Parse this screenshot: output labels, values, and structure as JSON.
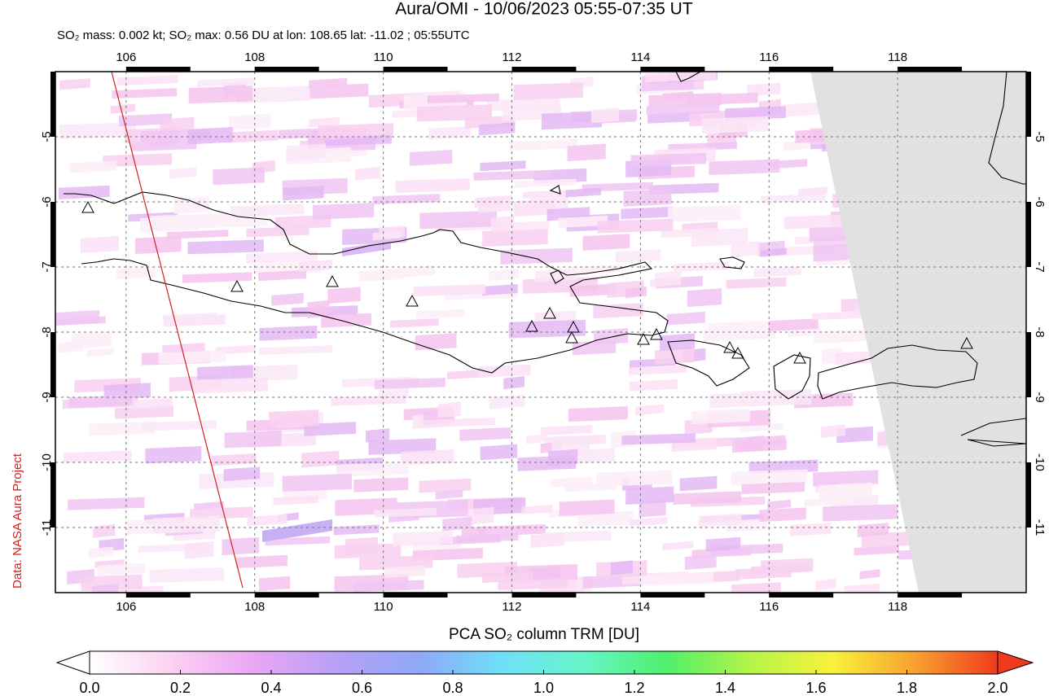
{
  "chart_data": {
    "type": "map",
    "title": "Aura/OMI - 10/06/2023 05:55-07:35 UT",
    "subtitle": "SO₂ mass: 0.002 kt; SO₂ max: 0.56 DU at lon: 108.65 lat: -11.02 ; 05:55UTC",
    "credit": "Data: NASA Aura Project",
    "xlim": [
      104.9,
      120
    ],
    "ylim": [
      -12,
      -4
    ],
    "xticks": [
      106,
      108,
      110,
      112,
      114,
      116,
      118
    ],
    "yticks": [
      -5,
      -6,
      -7,
      -8,
      -9,
      -10,
      -11
    ],
    "grid": true,
    "colorbar": {
      "label": "PCA SO₂ column TRM [DU]",
      "range": [
        0,
        2
      ],
      "colors": [
        "#ffffff",
        "#fbd0f0",
        "#e9a6f5",
        "#b7a0f6",
        "#8fa8f8",
        "#6fe0f8",
        "#66f5c8",
        "#4ff06a",
        "#b4f548",
        "#f8f23a",
        "#f8a030",
        "#f03a1e"
      ],
      "ticks": [
        {
          "value": 0,
          "label": "0.0"
        },
        {
          "value": 0.2,
          "label": "0.2"
        },
        {
          "value": 0.4,
          "label": "0.4"
        },
        {
          "value": 0.6,
          "label": "0.6"
        },
        {
          "value": 0.8,
          "label": "0.8"
        },
        {
          "value": 1,
          "label": "1.0"
        },
        {
          "value": 1.2,
          "label": "1.2"
        },
        {
          "value": 1.4,
          "label": "1.4"
        },
        {
          "value": 1.6,
          "label": "1.6"
        },
        {
          "value": 1.8,
          "label": "1.8"
        },
        {
          "value": 2,
          "label": "2.0"
        }
      ]
    }
  }
}
